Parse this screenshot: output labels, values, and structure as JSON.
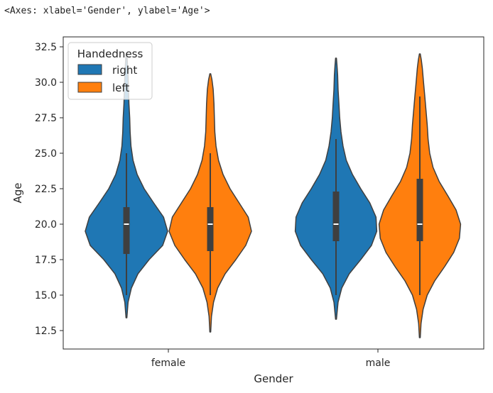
{
  "output_repr": "<Axes: xlabel='Gender', ylabel='Age'>",
  "chart_data": {
    "type": "violin",
    "xlabel": "Gender",
    "ylabel": "Age",
    "categories": [
      "female",
      "male"
    ],
    "ylim": [
      11.2,
      33.2
    ],
    "yticks": [
      12.5,
      15.0,
      17.5,
      20.0,
      22.5,
      25.0,
      27.5,
      30.0,
      32.5
    ],
    "ytick_labels": [
      "12.5",
      "15.0",
      "17.5",
      "20.0",
      "22.5",
      "25.0",
      "27.5",
      "30.0",
      "32.5"
    ],
    "legend": {
      "title": "Handedness",
      "location": "upper-left",
      "entries": [
        {
          "label": "right",
          "color": "#1f77b4"
        },
        {
          "label": "left",
          "color": "#ff7f0e"
        }
      ]
    },
    "series": [
      {
        "name": "right",
        "color": "#1f77b4",
        "violins": [
          {
            "category": "female",
            "min": 13.4,
            "max": 32.0,
            "whisker_low": 15.0,
            "q1": 17.9,
            "median": 20.0,
            "q3": 21.2,
            "whisker_high": 25.0,
            "profile": [
              [
                13.4,
                0.01
              ],
              [
                14.5,
                0.04
              ],
              [
                15.5,
                0.12
              ],
              [
                16.5,
                0.28
              ],
              [
                17.5,
                0.55
              ],
              [
                18.5,
                0.88
              ],
              [
                19.5,
                1.0
              ],
              [
                20.5,
                0.9
              ],
              [
                21.5,
                0.66
              ],
              [
                22.5,
                0.43
              ],
              [
                23.5,
                0.26
              ],
              [
                24.5,
                0.16
              ],
              [
                25.5,
                0.11
              ],
              [
                26.5,
                0.09
              ],
              [
                27.5,
                0.08
              ],
              [
                28.5,
                0.06
              ],
              [
                29.5,
                0.05
              ],
              [
                30.5,
                0.04
              ],
              [
                31.3,
                0.025
              ],
              [
                32.0,
                0.01
              ]
            ]
          },
          {
            "category": "male",
            "min": 13.3,
            "max": 31.7,
            "whisker_low": 15.0,
            "q1": 18.8,
            "median": 20.0,
            "q3": 22.3,
            "whisker_high": 26.0,
            "profile": [
              [
                13.3,
                0.01
              ],
              [
                14.5,
                0.05
              ],
              [
                15.5,
                0.14
              ],
              [
                16.5,
                0.32
              ],
              [
                17.5,
                0.6
              ],
              [
                18.5,
                0.86
              ],
              [
                19.5,
                0.99
              ],
              [
                20.5,
                0.97
              ],
              [
                21.5,
                0.82
              ],
              [
                22.5,
                0.6
              ],
              [
                23.5,
                0.4
              ],
              [
                24.5,
                0.25
              ],
              [
                25.5,
                0.17
              ],
              [
                26.5,
                0.12
              ],
              [
                27.5,
                0.09
              ],
              [
                28.5,
                0.07
              ],
              [
                29.5,
                0.05
              ],
              [
                30.5,
                0.04
              ],
              [
                31.2,
                0.025
              ],
              [
                31.7,
                0.01
              ]
            ]
          }
        ]
      },
      {
        "name": "left",
        "color": "#ff7f0e",
        "violins": [
          {
            "category": "female",
            "min": 12.4,
            "max": 30.6,
            "whisker_low": 15.0,
            "q1": 18.1,
            "median": 20.0,
            "q3": 21.2,
            "whisker_high": 25.0,
            "profile": [
              [
                12.4,
                0.01
              ],
              [
                13.5,
                0.03
              ],
              [
                14.5,
                0.08
              ],
              [
                15.5,
                0.18
              ],
              [
                16.5,
                0.36
              ],
              [
                17.5,
                0.62
              ],
              [
                18.5,
                0.86
              ],
              [
                19.5,
                1.0
              ],
              [
                20.5,
                0.92
              ],
              [
                21.5,
                0.7
              ],
              [
                22.5,
                0.48
              ],
              [
                23.5,
                0.31
              ],
              [
                24.5,
                0.2
              ],
              [
                25.5,
                0.14
              ],
              [
                26.5,
                0.11
              ],
              [
                27.5,
                0.1
              ],
              [
                28.5,
                0.09
              ],
              [
                29.5,
                0.07
              ],
              [
                30.2,
                0.04
              ],
              [
                30.6,
                0.01
              ]
            ]
          },
          {
            "category": "male",
            "min": 12.0,
            "max": 32.0,
            "whisker_low": 15.0,
            "q1": 18.8,
            "median": 20.0,
            "q3": 23.2,
            "whisker_high": 29.0,
            "profile": [
              [
                12.0,
                0.01
              ],
              [
                13.0,
                0.03
              ],
              [
                14.0,
                0.08
              ],
              [
                15.0,
                0.18
              ],
              [
                16.0,
                0.36
              ],
              [
                17.0,
                0.6
              ],
              [
                18.0,
                0.82
              ],
              [
                19.0,
                0.96
              ],
              [
                20.0,
                0.99
              ],
              [
                21.0,
                0.88
              ],
              [
                22.0,
                0.68
              ],
              [
                23.0,
                0.47
              ],
              [
                24.0,
                0.32
              ],
              [
                25.0,
                0.24
              ],
              [
                26.0,
                0.2
              ],
              [
                27.0,
                0.18
              ],
              [
                28.0,
                0.15
              ],
              [
                29.0,
                0.12
              ],
              [
                30.0,
                0.09
              ],
              [
                31.0,
                0.06
              ],
              [
                31.6,
                0.035
              ],
              [
                32.0,
                0.01
              ]
            ]
          }
        ]
      }
    ]
  }
}
